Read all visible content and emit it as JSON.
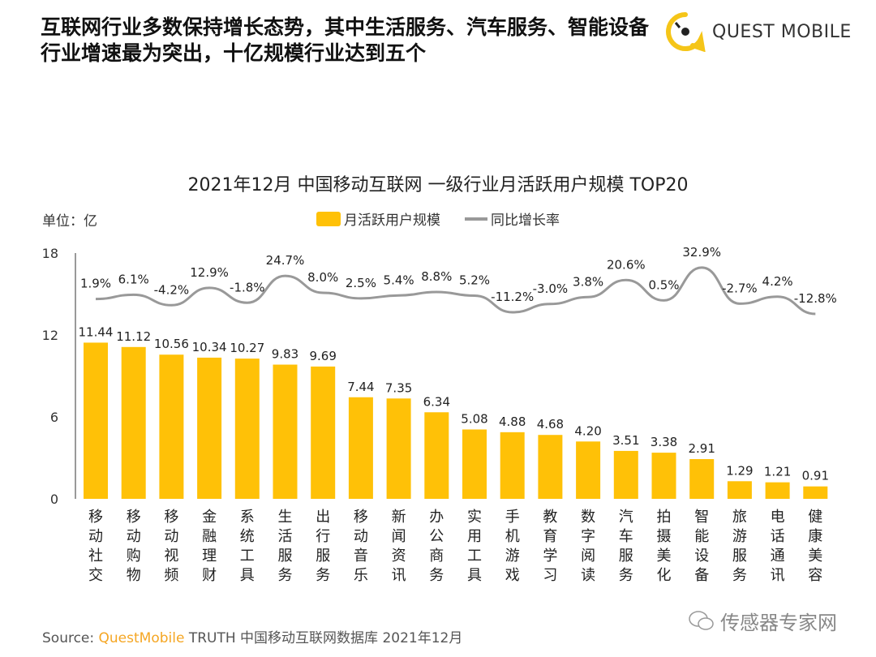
{
  "headline": "互联网行业多数保持增长态势，其中生活服务、汽车服务、智能设备行业增速最为突出，十亿规模行业达到五个",
  "logo": {
    "text": "QUEST MOBILE",
    "icon": "quest-mobile-logo-icon",
    "color": "#F5C518"
  },
  "unit_label": "单位：亿",
  "source": {
    "prefix": "Source:",
    "brand": "QuestMobile",
    "rest": "TRUTH 中国移动互联网数据库 2021年12月"
  },
  "wechat": {
    "icon": "wechat-icon",
    "text": "传感器专家网"
  },
  "chart_data": {
    "type": "bar+line",
    "title": "2021年12月 中国移动互联网 一级行业月活跃用户规模 TOP20",
    "categories": [
      "移动社交",
      "移动购物",
      "移动视频",
      "金融理财",
      "系统工具",
      "生活服务",
      "出行服务",
      "移动音乐",
      "新闻资讯",
      "办公商务",
      "实用工具",
      "手机游戏",
      "教育学习",
      "数字阅读",
      "汽车服务",
      "拍摄美化",
      "智能设备",
      "旅游服务",
      "电话通讯",
      "健康美容"
    ],
    "series": [
      {
        "name": "月活跃用户规模",
        "type": "bar",
        "color": "#FFC107",
        "values": [
          11.44,
          11.12,
          10.56,
          10.34,
          10.27,
          9.83,
          9.69,
          7.44,
          7.35,
          6.34,
          5.08,
          4.88,
          4.68,
          4.2,
          3.51,
          3.38,
          2.91,
          1.29,
          1.21,
          0.91
        ],
        "labels": [
          "11.44",
          "11.12",
          "10.56",
          "10.34",
          "10.27",
          "9.83",
          "9.69",
          "7.44",
          "7.35",
          "6.34",
          "5.08",
          "4.88",
          "4.68",
          "4.20",
          "3.51",
          "3.38",
          "2.91",
          "1.29",
          "1.21",
          "0.91"
        ]
      },
      {
        "name": "同比增长率",
        "type": "line",
        "color": "#999999",
        "values": [
          1.9,
          6.1,
          -4.2,
          12.9,
          -1.8,
          24.7,
          8.0,
          2.5,
          5.4,
          8.8,
          5.2,
          -11.2,
          -3.0,
          3.8,
          20.6,
          0.5,
          32.9,
          -2.7,
          4.2,
          -12.8
        ],
        "labels": [
          "1.9%",
          "6.1%",
          "-4.2%",
          "12.9%",
          "-1.8%",
          "24.7%",
          "8.0%",
          "2.5%",
          "5.4%",
          "8.8%",
          "5.2%",
          "-11.2%",
          "-3.0%",
          "3.8%",
          "20.6%",
          "0.5%",
          "32.9%",
          "-2.7%",
          "4.2%",
          "-12.8%"
        ]
      }
    ],
    "yaxis": {
      "ticks": [
        "0",
        "6",
        "12",
        "18"
      ],
      "ylim": [
        0,
        18
      ]
    },
    "legend_position": "top-center",
    "grid": false
  }
}
